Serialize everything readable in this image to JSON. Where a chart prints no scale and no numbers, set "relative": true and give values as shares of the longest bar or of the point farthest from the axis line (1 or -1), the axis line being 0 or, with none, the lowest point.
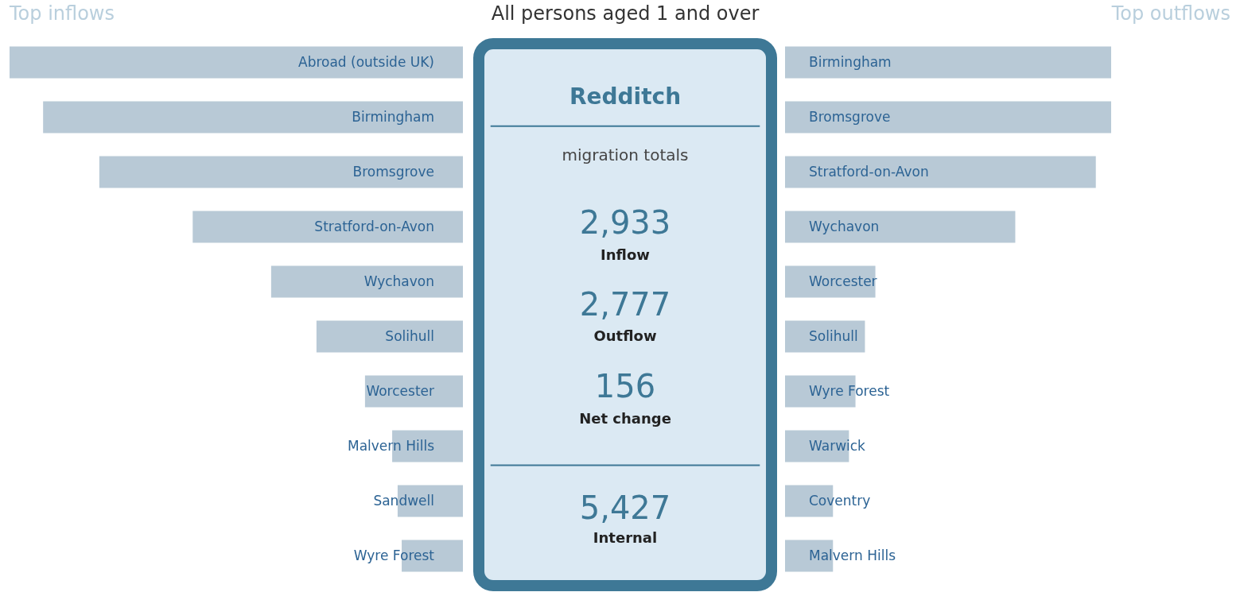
{
  "chart_data": [
    {
      "type": "bar",
      "orientation": "horizontal",
      "relative": true,
      "title": "Top inflows",
      "categories": [
        "Abroad (outside UK)",
        "Birmingham",
        "Bromsgrove",
        "Stratford-on-Avon",
        "Wychavon",
        "Solihull",
        "Worcester",
        "Malvern Hills",
        "Sandwell",
        "Wyre Forest"
      ],
      "values": [
        1,
        0.926,
        0.802,
        0.596,
        0.423,
        0.323,
        0.216,
        0.156,
        0.144,
        0.135
      ],
      "color": "#b8c9d6"
    },
    {
      "type": "other",
      "title": "All persons aged 1 and over",
      "subtitle": "Redditch",
      "annotations": [
        "migration totals",
        "2,933",
        "Inflow",
        "2,777",
        "Outflow",
        "156",
        "Net change",
        "5,427",
        "Internal"
      ]
    },
    {
      "type": "bar",
      "orientation": "horizontal",
      "relative": true,
      "title": "Top outflows",
      "categories": [
        "Birmingham",
        "Bromsgrove",
        "Stratford-on-Avon",
        "Wychavon",
        "Worcester",
        "Solihull",
        "Wyre Forest",
        "Warwick",
        "Coventry",
        "Malvern Hills"
      ],
      "values": [
        1,
        1,
        0.953,
        0.706,
        0.277,
        0.245,
        0.216,
        0.196,
        0.147,
        0.147
      ],
      "color": "#b8c9d6"
    }
  ]
}
